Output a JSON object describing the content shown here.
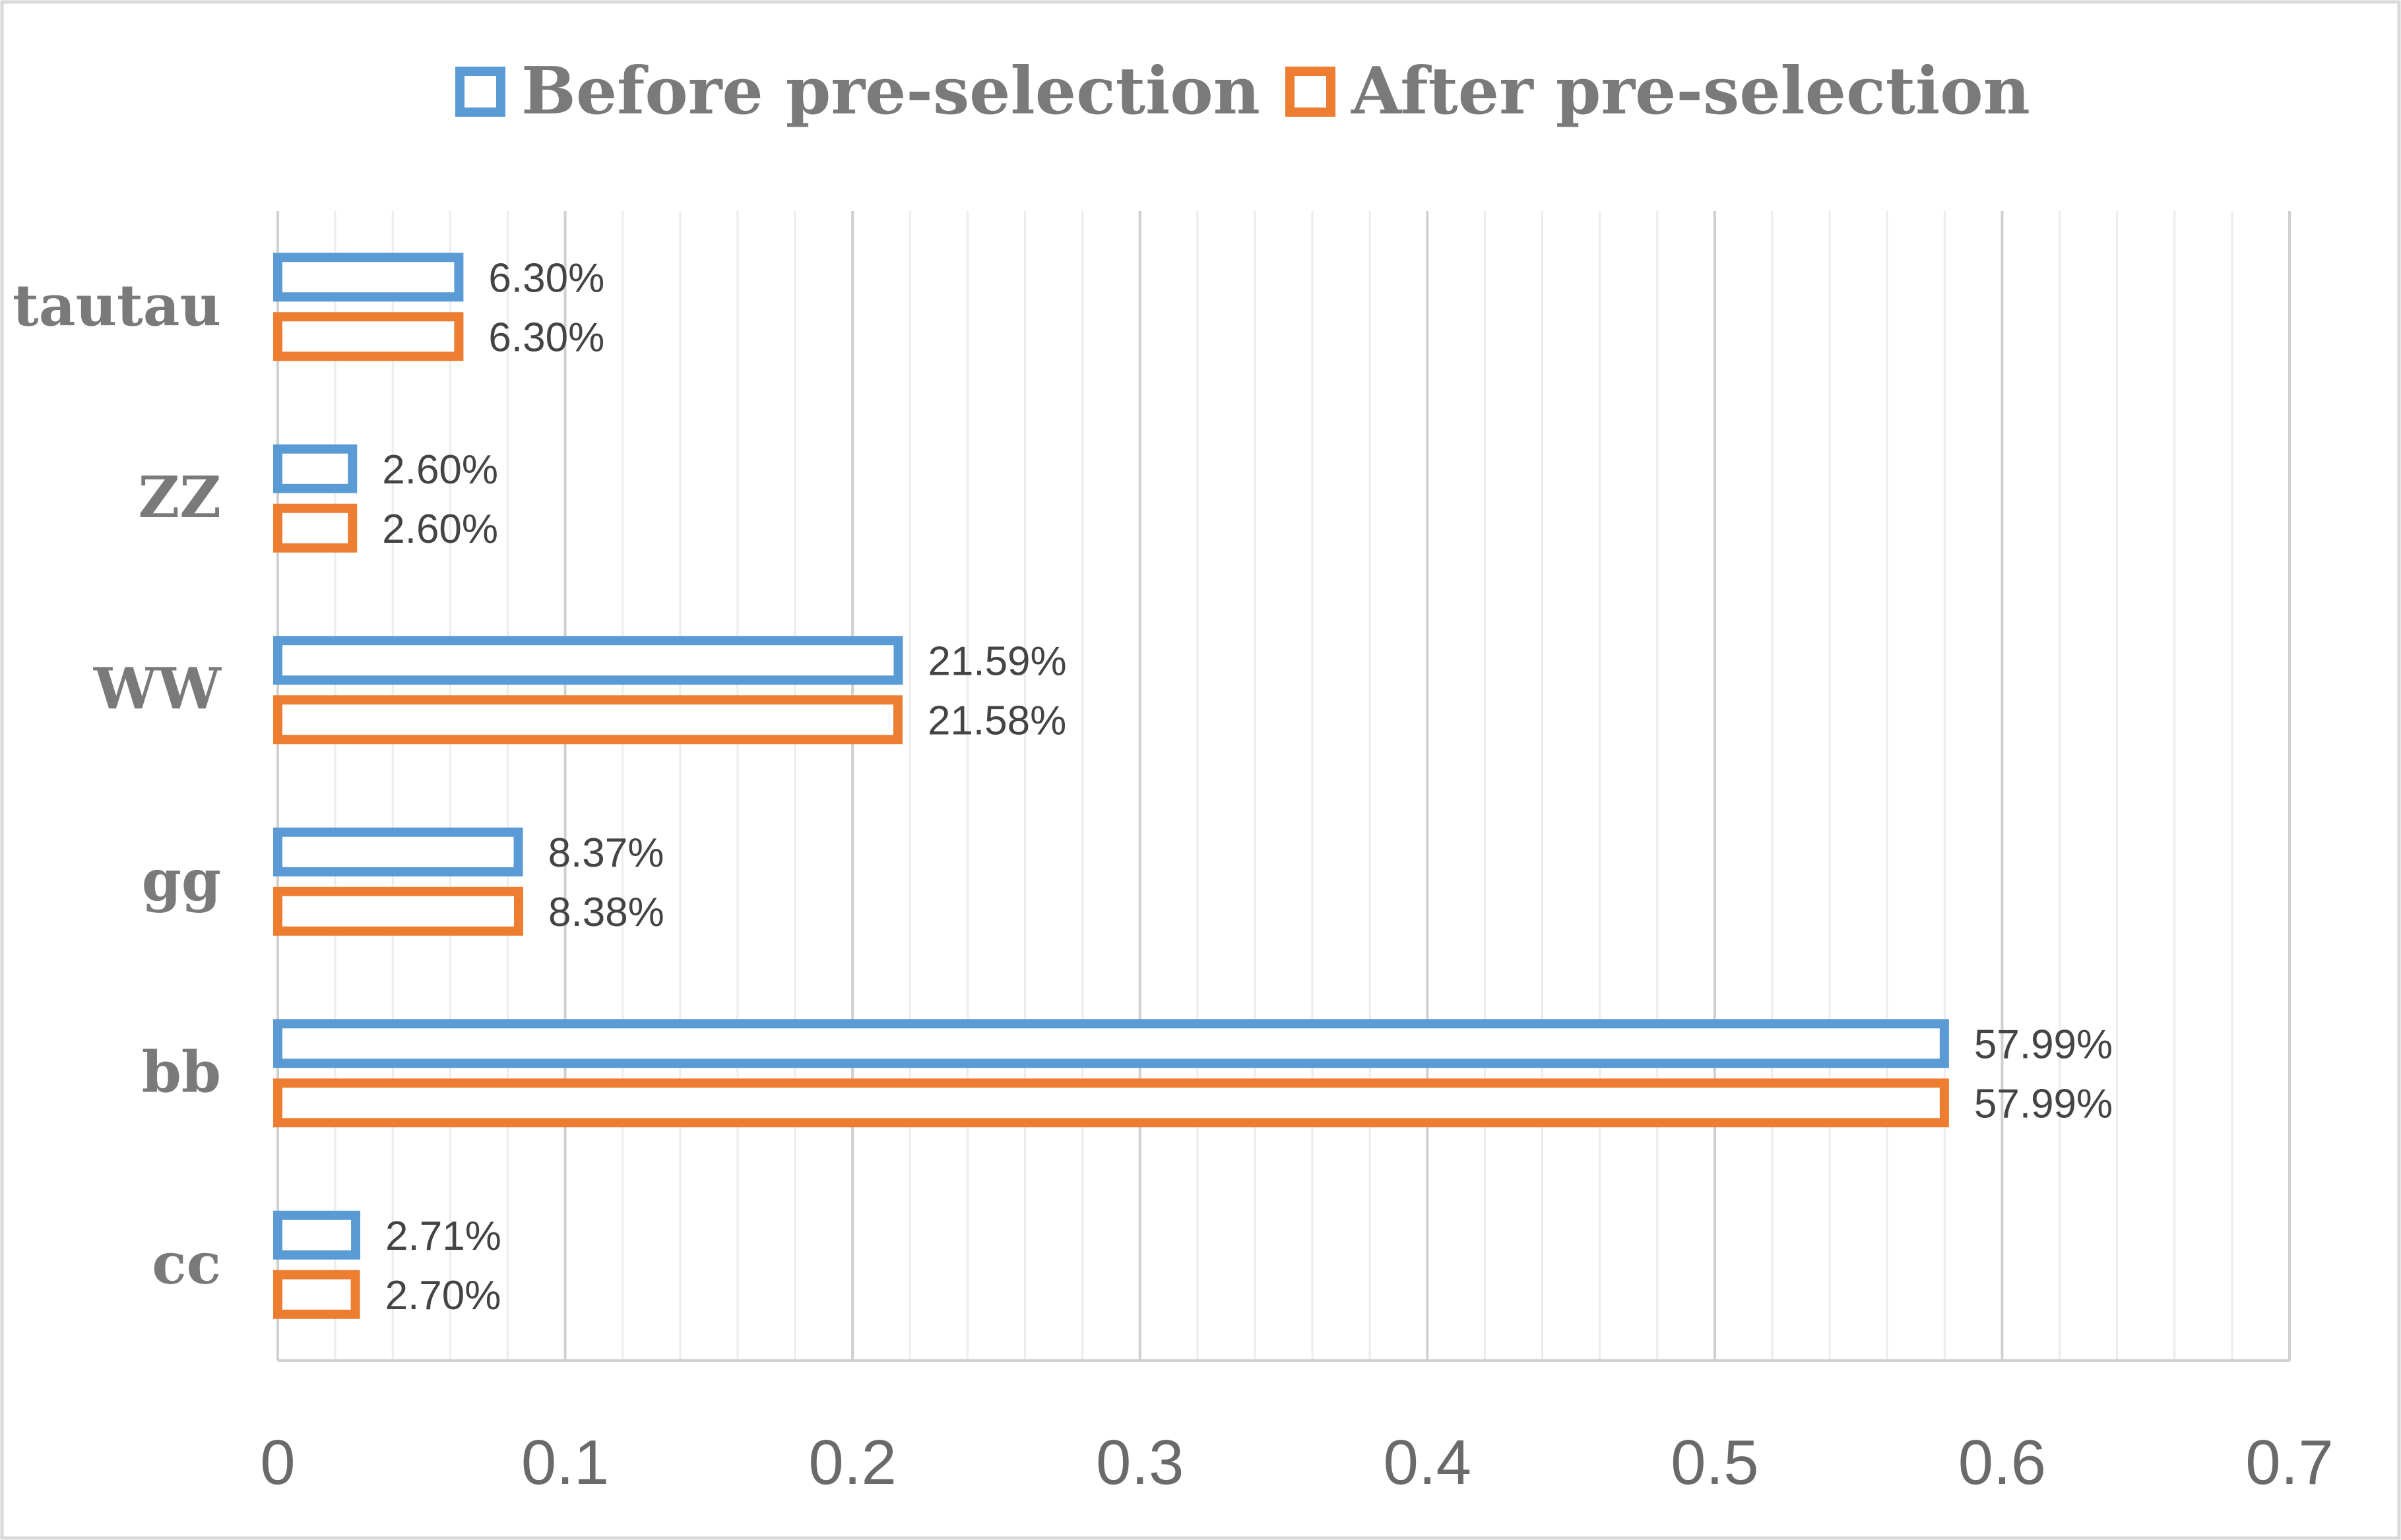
{
  "chart_data": {
    "type": "bar",
    "orientation": "horizontal",
    "categories": [
      "tautau",
      "ZZ",
      "WW",
      "gg",
      "bb",
      "cc"
    ],
    "series": [
      {
        "name": "Before pre-selection",
        "color": "#5b9bd5",
        "values": [
          0.063,
          0.026,
          0.2159,
          0.0837,
          0.5799,
          0.0271
        ],
        "labels": [
          "6.30%",
          "2.60%",
          "21.59%",
          "8.37%",
          "57.99%",
          "2.71%"
        ]
      },
      {
        "name": "After pre-selection",
        "color": "#ed7d31",
        "values": [
          0.063,
          0.026,
          0.2158,
          0.0838,
          0.5799,
          0.027
        ],
        "labels": [
          "6.30%",
          "2.60%",
          "21.58%",
          "8.38%",
          "57.99%",
          "2.70%"
        ]
      }
    ],
    "xlim": [
      0,
      0.7
    ],
    "xticks": [
      "0",
      "0.1",
      "0.2",
      "0.3",
      "0.4",
      "0.5",
      "0.6",
      "0.7"
    ],
    "grid": true,
    "legend_position": "top"
  }
}
